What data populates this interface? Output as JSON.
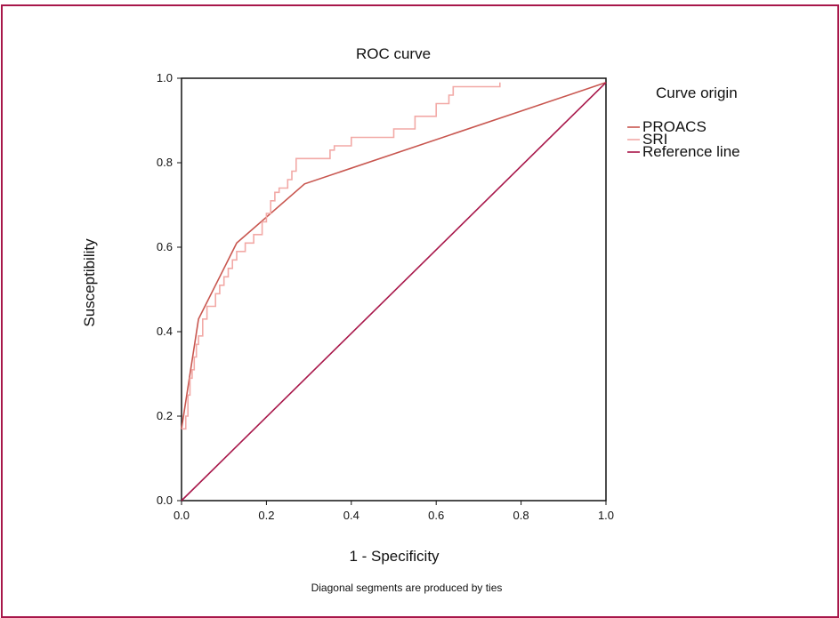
{
  "chart_data": {
    "type": "line",
    "title": "ROC curve",
    "xlabel": "1 - Specificity",
    "ylabel": "Susceptibility",
    "footnote": "Diagonal segments are produced by ties",
    "xlim": [
      0,
      1
    ],
    "ylim": [
      0,
      1
    ],
    "x_ticks": [
      "0.0",
      "0.2",
      "0.4",
      "0.6",
      "0.8",
      "1.0"
    ],
    "y_ticks": [
      "0.0",
      "0.2",
      "0.4",
      "0.6",
      "0.8",
      "1.0"
    ],
    "grid": false,
    "legend": {
      "title": "Curve origin",
      "placement": "right",
      "items": [
        "PROACS",
        "SRI",
        "Reference line"
      ]
    },
    "series": [
      {
        "name": "PROACS",
        "color": "#c8564f",
        "points": [
          [
            0,
            0.17
          ],
          [
            0.04,
            0.43
          ],
          [
            0.13,
            0.61
          ],
          [
            0.29,
            0.75
          ],
          [
            1.0,
            0.99
          ]
        ]
      },
      {
        "name": "SRI",
        "color": "#f2a9a6",
        "points": [
          [
            0.0,
            0.17
          ],
          [
            0.01,
            0.17
          ],
          [
            0.01,
            0.2
          ],
          [
            0.015,
            0.2
          ],
          [
            0.015,
            0.25
          ],
          [
            0.02,
            0.25
          ],
          [
            0.02,
            0.29
          ],
          [
            0.025,
            0.29
          ],
          [
            0.025,
            0.31
          ],
          [
            0.03,
            0.31
          ],
          [
            0.03,
            0.34
          ],
          [
            0.035,
            0.34
          ],
          [
            0.035,
            0.37
          ],
          [
            0.04,
            0.37
          ],
          [
            0.04,
            0.39
          ],
          [
            0.05,
            0.39
          ],
          [
            0.05,
            0.43
          ],
          [
            0.06,
            0.43
          ],
          [
            0.06,
            0.46
          ],
          [
            0.08,
            0.46
          ],
          [
            0.08,
            0.49
          ],
          [
            0.09,
            0.49
          ],
          [
            0.09,
            0.51
          ],
          [
            0.1,
            0.51
          ],
          [
            0.1,
            0.53
          ],
          [
            0.11,
            0.53
          ],
          [
            0.11,
            0.55
          ],
          [
            0.12,
            0.55
          ],
          [
            0.12,
            0.57
          ],
          [
            0.13,
            0.57
          ],
          [
            0.13,
            0.59
          ],
          [
            0.15,
            0.59
          ],
          [
            0.15,
            0.61
          ],
          [
            0.17,
            0.61
          ],
          [
            0.17,
            0.63
          ],
          [
            0.19,
            0.63
          ],
          [
            0.19,
            0.66
          ],
          [
            0.2,
            0.66
          ],
          [
            0.2,
            0.68
          ],
          [
            0.21,
            0.68
          ],
          [
            0.21,
            0.71
          ],
          [
            0.22,
            0.71
          ],
          [
            0.22,
            0.73
          ],
          [
            0.23,
            0.73
          ],
          [
            0.23,
            0.74
          ],
          [
            0.25,
            0.74
          ],
          [
            0.25,
            0.76
          ],
          [
            0.26,
            0.76
          ],
          [
            0.26,
            0.78
          ],
          [
            0.27,
            0.78
          ],
          [
            0.27,
            0.81
          ],
          [
            0.35,
            0.81
          ],
          [
            0.35,
            0.83
          ],
          [
            0.36,
            0.83
          ],
          [
            0.36,
            0.84
          ],
          [
            0.4,
            0.84
          ],
          [
            0.4,
            0.86
          ],
          [
            0.5,
            0.86
          ],
          [
            0.5,
            0.88
          ],
          [
            0.55,
            0.88
          ],
          [
            0.55,
            0.91
          ],
          [
            0.6,
            0.91
          ],
          [
            0.6,
            0.94
          ],
          [
            0.63,
            0.94
          ],
          [
            0.63,
            0.96
          ],
          [
            0.64,
            0.96
          ],
          [
            0.64,
            0.98
          ],
          [
            0.75,
            0.98
          ],
          [
            0.75,
            0.99
          ]
        ]
      },
      {
        "name": "Reference line",
        "color": "#a8174a",
        "points": [
          [
            0,
            0
          ],
          [
            1,
            0.99
          ]
        ]
      }
    ]
  }
}
